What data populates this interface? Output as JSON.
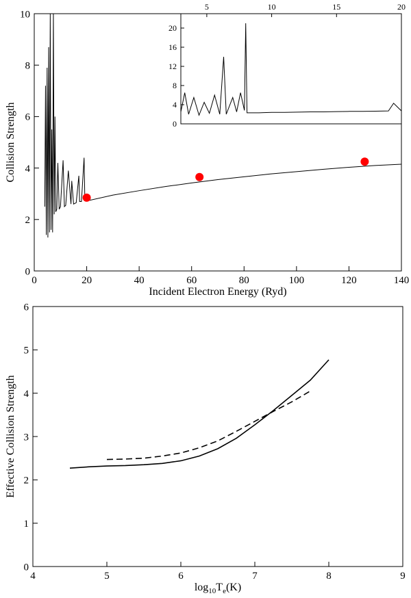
{
  "chart_data": [
    {
      "type": "line",
      "xlabel": "Incident Electron Energy (Ryd)",
      "ylabel": "Collision Strength",
      "xlim": [
        0,
        140
      ],
      "ylim": [
        0,
        10
      ],
      "xticks": [
        0,
        20,
        40,
        60,
        80,
        100,
        120,
        140
      ],
      "yticks": [
        0,
        2,
        4,
        6,
        8,
        10
      ],
      "series": [
        {
          "style": "line",
          "color": "#000000",
          "x": [
            4,
            4.3,
            4.6,
            4.9,
            5.2,
            5.5,
            5.8,
            6.1,
            6.4,
            6.7,
            7.0,
            7.3,
            7.6,
            7.9,
            8.2,
            8.6,
            9,
            9.5,
            10,
            11,
            11.5,
            12,
            13,
            14,
            14.3,
            15,
            16,
            17,
            17.3,
            18,
            19,
            19.3,
            20,
            30,
            40,
            50,
            60,
            70,
            80,
            90,
            100,
            110,
            120,
            130,
            140
          ],
          "values": [
            2.5,
            7.2,
            1.4,
            7.9,
            1.3,
            8.7,
            1.5,
            10,
            1.6,
            5.5,
            1.5,
            10,
            2.2,
            6,
            2.3,
            2.4,
            4.2,
            2.4,
            2.5,
            4.3,
            2.5,
            2.55,
            3.9,
            2.6,
            3.5,
            2.6,
            2.65,
            3.7,
            2.7,
            2.7,
            4.4,
            2.75,
            2.72,
            2.95,
            3.12,
            3.28,
            3.42,
            3.55,
            3.66,
            3.77,
            3.86,
            3.95,
            4.03,
            4.1,
            4.15
          ]
        },
        {
          "style": "marker",
          "color": "#ff0000",
          "x": [
            20,
            63,
            126
          ],
          "values": [
            2.85,
            3.65,
            4.25
          ]
        }
      ]
    },
    {
      "type": "line",
      "xlim": [
        3,
        20
      ],
      "ylim": [
        0,
        23
      ],
      "xticks": [
        5,
        10,
        15,
        20
      ],
      "yticks": [
        0,
        4,
        8,
        12,
        16,
        20
      ],
      "xaxis_position": "top",
      "series": [
        {
          "style": "line",
          "color": "#000000",
          "x": [
            3,
            3.3,
            3.6,
            4,
            4.4,
            4.8,
            5.2,
            5.6,
            6,
            6.3,
            6.5,
            7,
            7.3,
            7.6,
            7.9,
            8,
            8.1,
            9,
            10,
            11,
            12,
            13,
            14,
            15,
            16,
            17,
            18,
            19,
            19.4,
            20
          ],
          "values": [
            2.5,
            6.5,
            2,
            5.5,
            1.8,
            4.5,
            2.2,
            6,
            2,
            14,
            2,
            5.5,
            2.5,
            6.5,
            2.8,
            21,
            2.3,
            2.3,
            2.4,
            2.4,
            2.45,
            2.5,
            2.5,
            2.55,
            2.6,
            2.6,
            2.65,
            2.7,
            4.3,
            2.7
          ]
        }
      ]
    },
    {
      "type": "line",
      "xlabel": [
        "log",
        "10",
        "T",
        "e",
        "(K)"
      ],
      "ylabel": "Effective Collision Strength",
      "xlim": [
        4,
        9
      ],
      "ylim": [
        0,
        6
      ],
      "xticks": [
        4,
        5,
        6,
        7,
        8,
        9
      ],
      "yticks": [
        0,
        1,
        2,
        3,
        4,
        5,
        6
      ],
      "series": [
        {
          "style": "line",
          "color": "#000000",
          "x": [
            4.5,
            4.75,
            5,
            5.25,
            5.5,
            5.75,
            6,
            6.25,
            6.5,
            6.75,
            7,
            7.25,
            7.5,
            7.75,
            8
          ],
          "values": [
            2.27,
            2.3,
            2.32,
            2.33,
            2.35,
            2.38,
            2.44,
            2.55,
            2.72,
            2.96,
            3.27,
            3.6,
            3.95,
            4.3,
            4.77
          ]
        },
        {
          "style": "dashed",
          "color": "#000000",
          "x": [
            5,
            5.25,
            5.5,
            5.75,
            6,
            6.25,
            6.5,
            6.75,
            7,
            7.25,
            7.5,
            7.75
          ],
          "values": [
            2.47,
            2.48,
            2.5,
            2.55,
            2.62,
            2.74,
            2.9,
            3.12,
            3.35,
            3.58,
            3.8,
            4.05
          ]
        }
      ]
    }
  ]
}
